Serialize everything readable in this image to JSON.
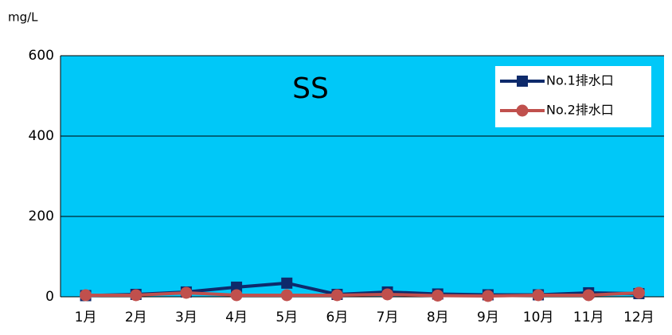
{
  "chart_data": {
    "type": "line",
    "title": "SS",
    "y_label": "mg/L",
    "categories": [
      "1月",
      "2月",
      "3月",
      "4月",
      "5月",
      "6月",
      "7月",
      "8月",
      "9月",
      "10月",
      "11月",
      "12月"
    ],
    "series": [
      {
        "name": "No.1排水口",
        "color": "#0e2a6b",
        "marker": "square",
        "values": [
          3,
          6,
          12,
          24,
          34,
          6,
          12,
          7,
          5,
          5,
          10,
          8
        ]
      },
      {
        "name": "No.2排水口",
        "color": "#c0504d",
        "marker": "circle",
        "values": [
          4,
          4,
          10,
          4,
          4,
          4,
          6,
          3,
          2,
          4,
          4,
          10
        ]
      }
    ],
    "ylim": [
      0,
      600
    ],
    "yticks": [
      0,
      200,
      400,
      600
    ],
    "grid": true,
    "background": "#00c8f8",
    "legend": "top-right"
  }
}
